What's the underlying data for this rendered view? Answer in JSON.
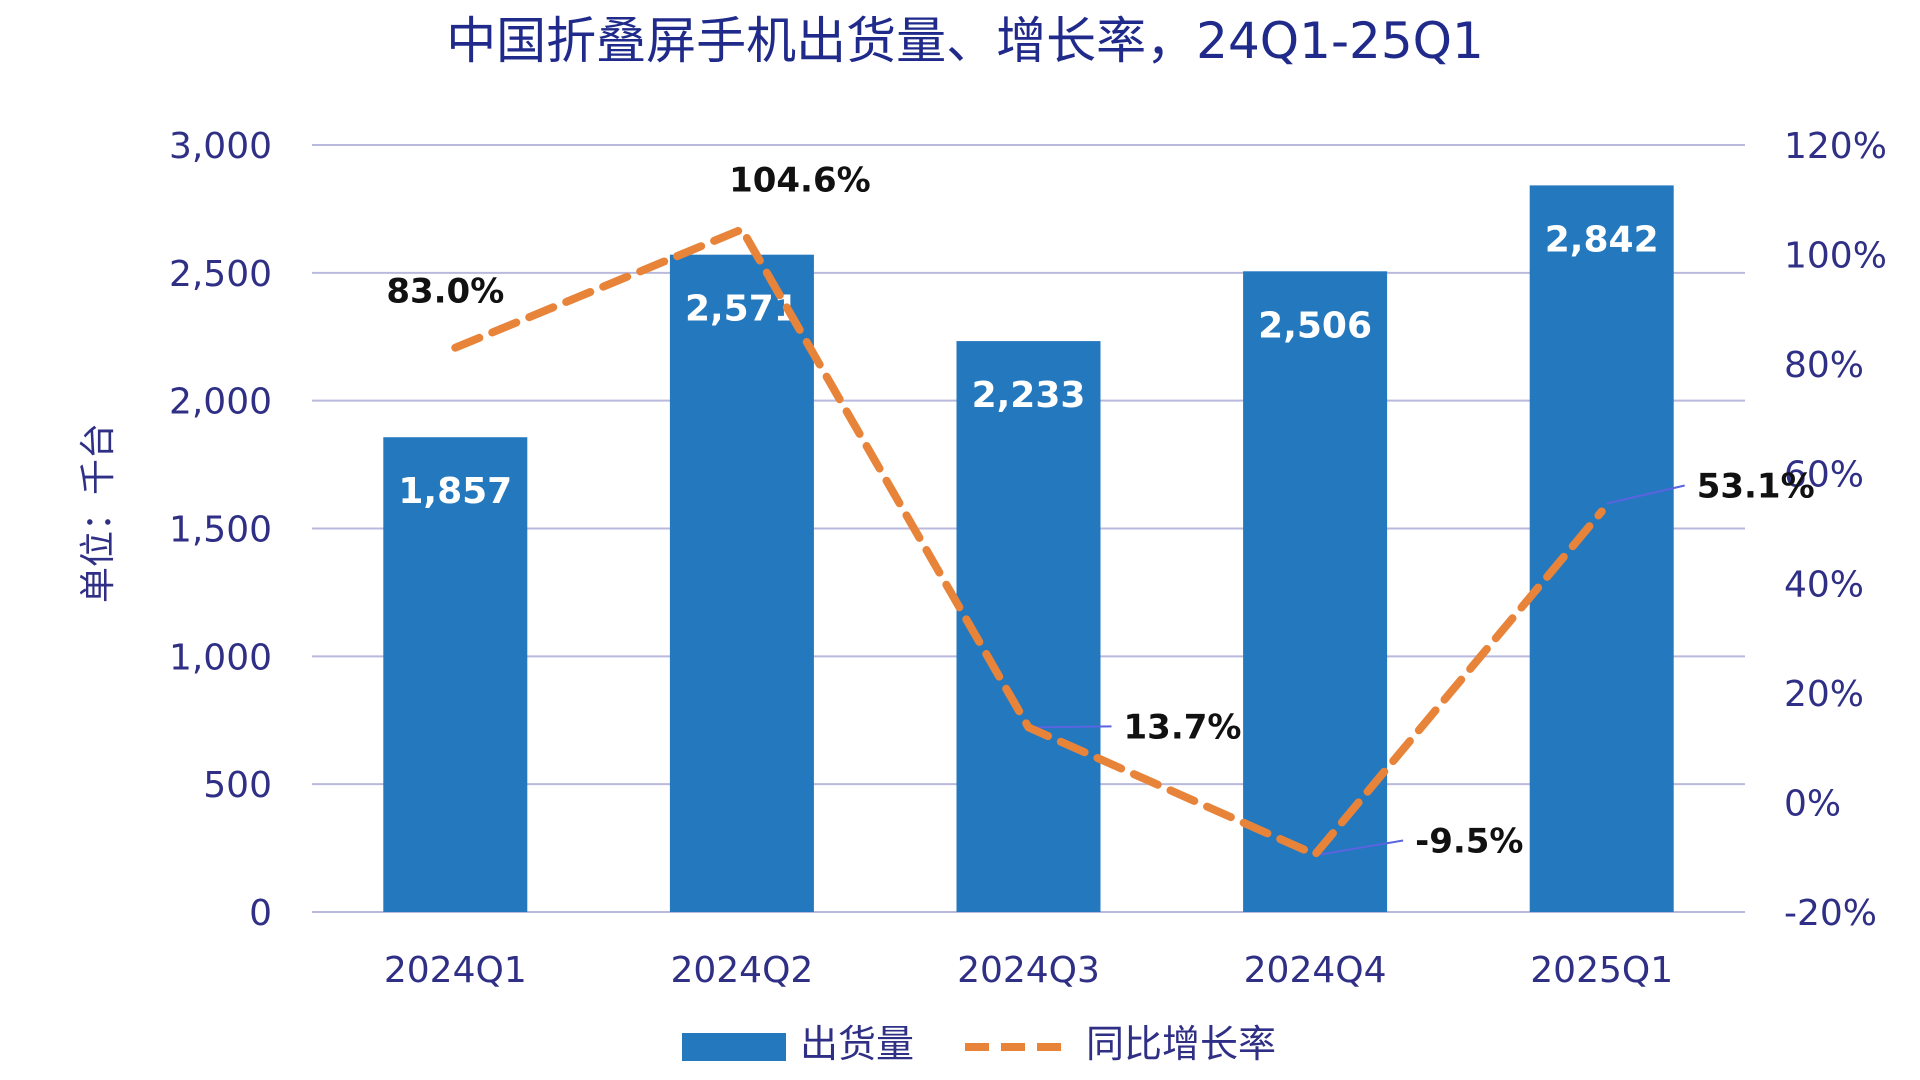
{
  "chart_data": {
    "type": "bar",
    "title": "中国折叠屏手机出货量、增长率，24Q1-25Q1",
    "ylabel": "单位：千台",
    "categories": [
      "2024Q1",
      "2024Q2",
      "2024Q3",
      "2024Q4",
      "2025Q1"
    ],
    "y_left": {
      "min": 0,
      "max": 3000,
      "ticks": [
        0,
        500,
        1000,
        1500,
        2000,
        2500,
        3000
      ],
      "tick_labels": [
        "0",
        "500",
        "1,000",
        "1,500",
        "2,000",
        "2,500",
        "3,000"
      ]
    },
    "y_right": {
      "min": -20,
      "max": 120,
      "ticks": [
        -20,
        0,
        20,
        40,
        60,
        80,
        100,
        120
      ],
      "tick_labels": [
        "-20%",
        "0%",
        "20%",
        "40%",
        "60%",
        "80%",
        "100%",
        "120%"
      ]
    },
    "series": [
      {
        "name": "出货量",
        "type": "bar",
        "axis": "left",
        "values": [
          1857,
          2571,
          2233,
          2506,
          2842
        ],
        "labels": [
          "1,857",
          "2,571",
          "2,233",
          "2,506",
          "2,842"
        ],
        "color": "#2478bd"
      },
      {
        "name": "同比增长率",
        "type": "line",
        "style": "dashed",
        "axis": "right",
        "values": [
          83.0,
          104.6,
          13.7,
          -9.5,
          53.1
        ],
        "labels": [
          "83.0%",
          "104.6%",
          "13.7%",
          "-9.5%",
          "53.1%"
        ],
        "color": "#e8843a"
      }
    ],
    "grid": true,
    "legend_position": "bottom-center",
    "colors": {
      "title": "#1f2a8a",
      "axis_text": "#2f2f86",
      "gridline": "#b9b9dd",
      "leader_line": "#5a64e0",
      "bar_label": "#ffffff",
      "line_label": "#111111"
    }
  }
}
